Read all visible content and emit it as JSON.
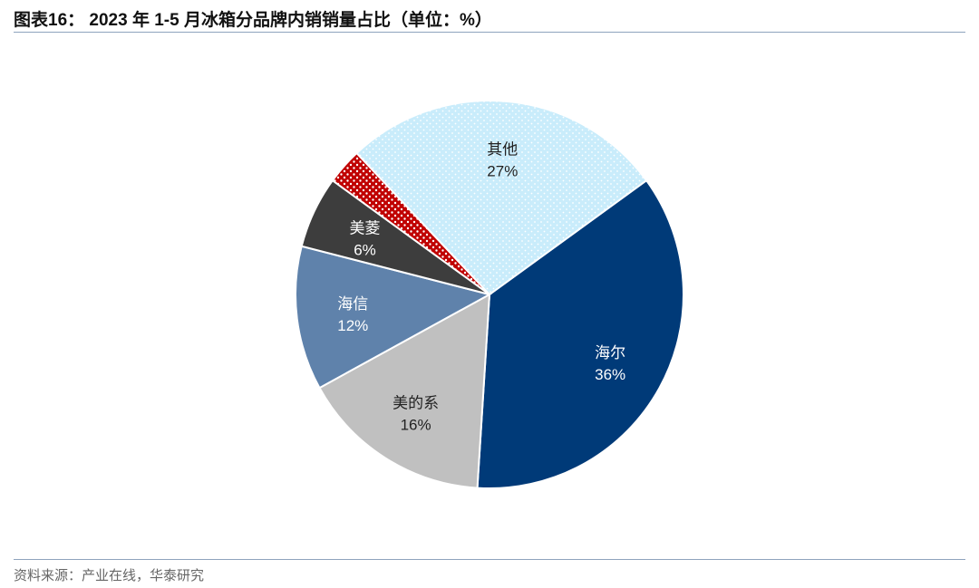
{
  "header": {
    "title": "图表16： 2023 年 1-5 月冰箱分品牌内销销量占比（单位：%）"
  },
  "footer": {
    "source": "资料来源：产业在线，华泰研究"
  },
  "chart_data": {
    "type": "pie",
    "title": "图表16： 2023 年 1-5 月冰箱分品牌内销销量占比（单位：%）",
    "unit": "%",
    "start_angle_deg": 54,
    "direction": "clockwise",
    "slices": [
      {
        "name": "海尔",
        "value": 36,
        "label": "36%",
        "color": "#003a78",
        "text_color": "#ffffff"
      },
      {
        "name": "美的系",
        "value": 16,
        "label": "16%",
        "color": "#c0c0c0",
        "text_color": "#222222"
      },
      {
        "name": "海信",
        "value": 12,
        "label": "12%",
        "color": "#5f82ab",
        "text_color": "#ffffff"
      },
      {
        "name": "美菱",
        "value": 6,
        "label": "6%",
        "color": "#3d3d3d",
        "text_color": "#ffffff"
      },
      {
        "name": "",
        "value": 3,
        "label": "",
        "color": "#c00000",
        "pattern": "dots-white",
        "text_color": "#ffffff"
      },
      {
        "name": "其他",
        "value": 27,
        "label": "27%",
        "color": "#cceeff",
        "pattern": "dots-white",
        "text_color": "#222222"
      }
    ]
  }
}
